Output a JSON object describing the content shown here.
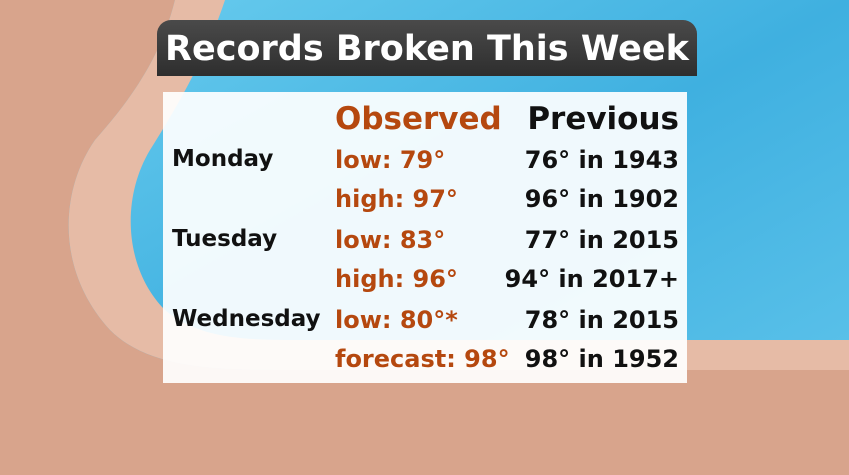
{
  "title": "Records Broken This Week",
  "table": {
    "headers": {
      "observed": "Observed",
      "previous": "Previous"
    },
    "rows": [
      {
        "day": "Monday",
        "observed": "low: 79°",
        "previous": "76° in 1943"
      },
      {
        "observed": "high: 97°",
        "previous": "96° in 1902"
      },
      {
        "day": "Tuesday",
        "observed": "low: 83°",
        "previous": "77° in 2015"
      },
      {
        "observed": "high: 96°",
        "previous": "94° in 2017+"
      },
      {
        "day": "Wednesday",
        "observed": "low: 80°*",
        "previous": "78° in 2015"
      },
      {
        "observed": "forecast: 98°",
        "previous": "98° in 1952"
      }
    ]
  }
}
